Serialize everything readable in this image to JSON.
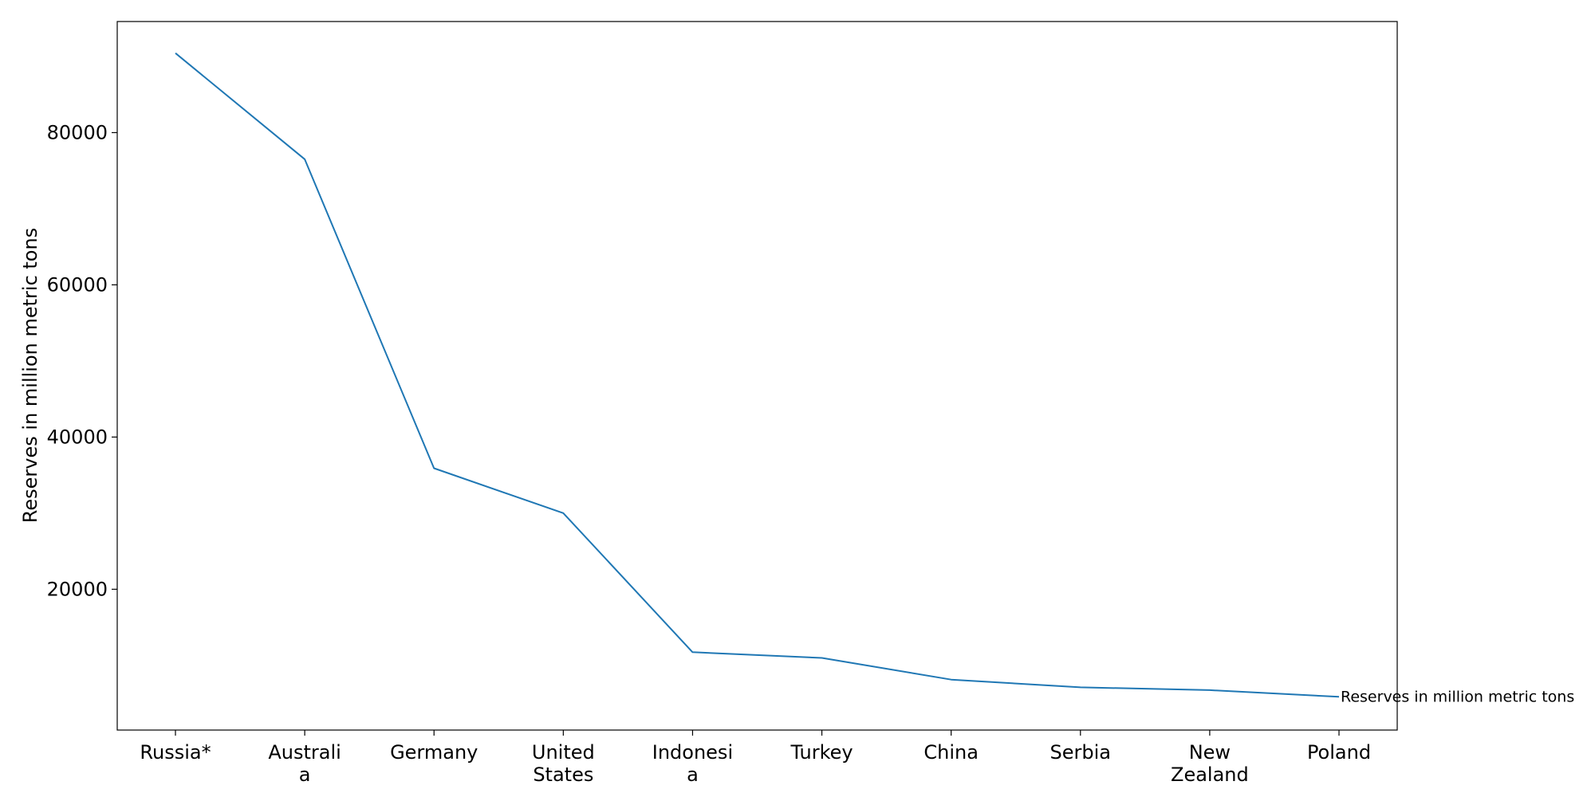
{
  "chart_data": {
    "type": "line",
    "categories": [
      "Russia*",
      "Australia",
      "Germany",
      "United States",
      "Indonesia",
      "Turkey",
      "China",
      "Serbia",
      "New Zealand",
      "Poland"
    ],
    "category_lines": [
      [
        "Russia*"
      ],
      [
        "Australi",
        "a"
      ],
      [
        "Germany"
      ],
      [
        "United",
        "States"
      ],
      [
        "Indonesi",
        "a"
      ],
      [
        "Turkey"
      ],
      [
        "China"
      ],
      [
        "Serbia"
      ],
      [
        "New",
        "Zealand"
      ],
      [
        "Poland"
      ]
    ],
    "series": [
      {
        "name": "Reserves in million metric tons",
        "color": "#1f77b4",
        "values": [
          90447,
          76508,
          35900,
          30003,
          11728,
          10975,
          8128,
          7112,
          6750,
          5865
        ]
      }
    ],
    "title": "",
    "xlabel": "",
    "ylabel": "Reserves in million metric tons",
    "ylim": [
      1500,
      94600
    ],
    "yticks": [
      20000,
      40000,
      60000,
      80000
    ],
    "grid": false,
    "legend": "none",
    "end_label": "Reserves in million metric tons"
  }
}
